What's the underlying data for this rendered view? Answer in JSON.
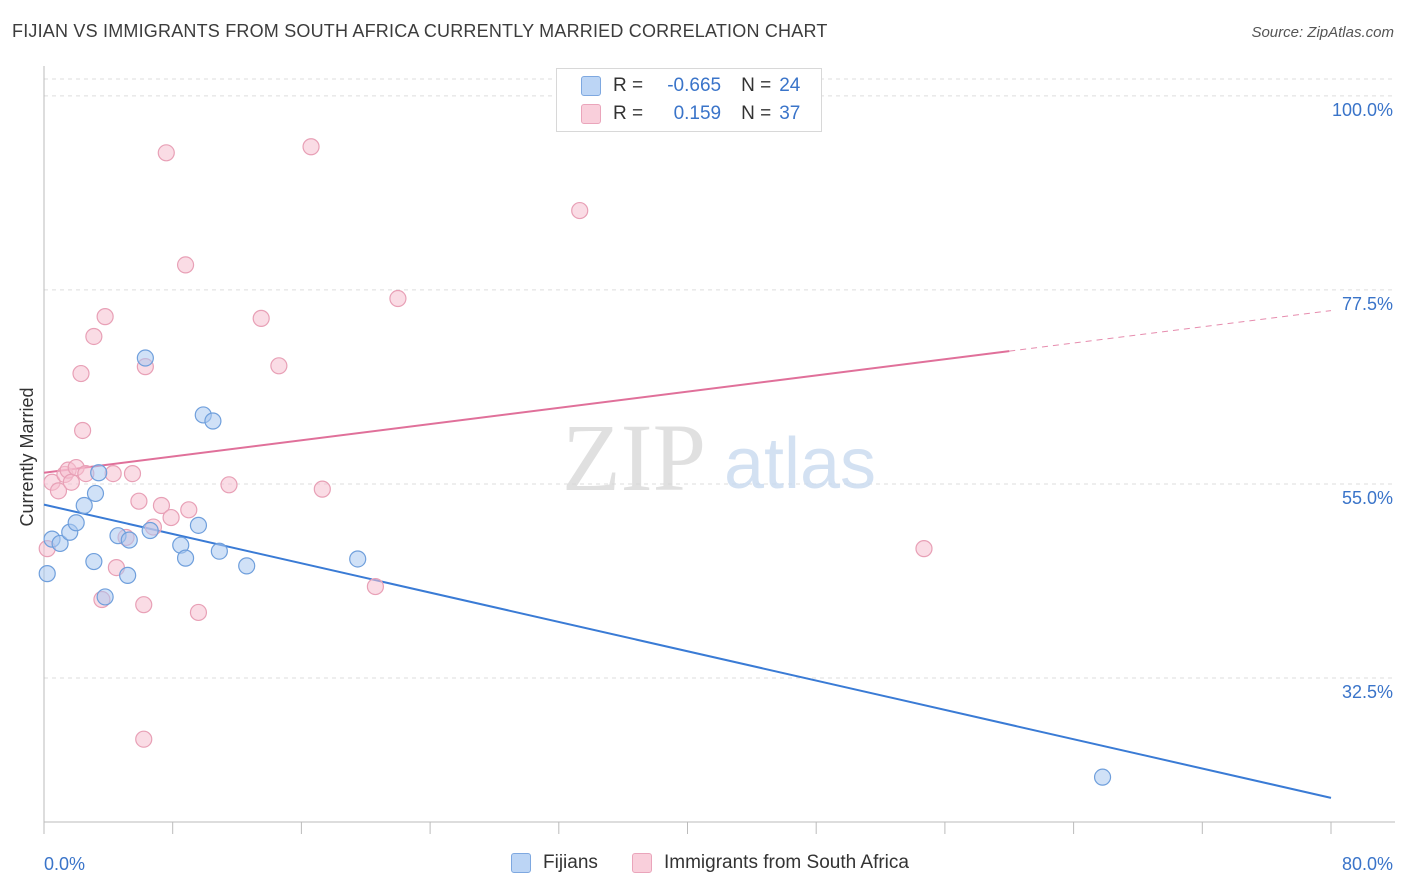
{
  "title": "FIJIAN VS IMMIGRANTS FROM SOUTH AFRICA CURRENTLY MARRIED CORRELATION CHART",
  "source": "Source: ZipAtlas.com",
  "colors": {
    "fijians_fill": "#a9c8f0",
    "fijians_stroke": "#6f9fdc",
    "fijians_line": "#3a7bd5",
    "sa_fill": "#f6c0d0",
    "sa_stroke": "#e8a0b6",
    "sa_line": "#e0709a",
    "axis_label": "#3a74c9",
    "grid": "#dddddd"
  },
  "legend": {
    "fijians": {
      "r_label": "R =",
      "r_value": "-0.665",
      "n_label": "N =",
      "n_value": "24"
    },
    "sa": {
      "r_label": "R =",
      "r_value": "0.159",
      "n_label": "N =",
      "n_value": "37"
    }
  },
  "chart_data": {
    "type": "scatter",
    "title": "FIJIAN VS IMMIGRANTS FROM SOUTH AFRICA CURRENTLY MARRIED CORRELATION CHART",
    "xlabel": "",
    "ylabel": "Currently Married",
    "xlim": [
      0,
      80
    ],
    "ylim": [
      15.8,
      103
    ],
    "x_tick_labels": [
      "0.0%",
      "80.0%"
    ],
    "y_ticks": [
      32.5,
      55.0,
      77.5,
      100.0
    ],
    "y_tick_labels": [
      "32.5%",
      "55.0%",
      "77.5%",
      "100.0%"
    ],
    "watermark": {
      "zip": "ZIP",
      "atlas": "atlas"
    },
    "series": [
      {
        "name": "Fijians",
        "points": [
          [
            0.2,
            44.6
          ],
          [
            0.5,
            48.6
          ],
          [
            1.0,
            48.1
          ],
          [
            1.6,
            49.4
          ],
          [
            2.0,
            50.5
          ],
          [
            2.5,
            52.5
          ],
          [
            3.2,
            53.9
          ],
          [
            3.4,
            56.3
          ],
          [
            3.1,
            46.0
          ],
          [
            3.8,
            41.9
          ],
          [
            4.6,
            49.0
          ],
          [
            5.3,
            48.5
          ],
          [
            5.2,
            44.4
          ],
          [
            6.3,
            69.6
          ],
          [
            6.6,
            49.6
          ],
          [
            8.5,
            47.9
          ],
          [
            8.8,
            46.4
          ],
          [
            9.6,
            50.2
          ],
          [
            9.9,
            63.0
          ],
          [
            10.5,
            62.3
          ],
          [
            10.9,
            47.2
          ],
          [
            12.6,
            45.5
          ],
          [
            19.5,
            46.3
          ],
          [
            65.8,
            21.0
          ]
        ],
        "trend": {
          "x1": 0,
          "y1": 52.6,
          "x2": 80,
          "y2": 18.6
        }
      },
      {
        "name": "Immigrants from South Africa",
        "points": [
          [
            0.2,
            47.5
          ],
          [
            0.5,
            55.2
          ],
          [
            0.9,
            54.2
          ],
          [
            1.3,
            56.1
          ],
          [
            1.5,
            56.6
          ],
          [
            1.7,
            55.2
          ],
          [
            2.0,
            56.9
          ],
          [
            2.3,
            67.8
          ],
          [
            2.4,
            61.2
          ],
          [
            2.6,
            56.2
          ],
          [
            3.1,
            72.1
          ],
          [
            3.8,
            74.4
          ],
          [
            3.6,
            41.6
          ],
          [
            4.3,
            56.2
          ],
          [
            4.5,
            45.3
          ],
          [
            5.1,
            48.8
          ],
          [
            5.5,
            56.2
          ],
          [
            5.9,
            53.0
          ],
          [
            6.2,
            25.4
          ],
          [
            6.2,
            41.0
          ],
          [
            6.3,
            68.6
          ],
          [
            6.8,
            50.0
          ],
          [
            7.3,
            52.5
          ],
          [
            7.6,
            93.4
          ],
          [
            7.9,
            51.1
          ],
          [
            8.8,
            80.4
          ],
          [
            9.0,
            52.0
          ],
          [
            9.6,
            40.1
          ],
          [
            11.5,
            54.9
          ],
          [
            13.5,
            74.2
          ],
          [
            14.6,
            68.7
          ],
          [
            16.6,
            94.1
          ],
          [
            17.3,
            54.4
          ],
          [
            20.6,
            43.1
          ],
          [
            22.0,
            76.5
          ],
          [
            33.3,
            86.7
          ],
          [
            54.7,
            47.5
          ]
        ],
        "trend": {
          "x1": 0,
          "y1": 56.3,
          "x2": 60,
          "y2": 70.4,
          "x_dash_end": 80,
          "y_dash_end": 75.1
        }
      }
    ]
  },
  "bottom_legend": {
    "fijians_label": "Fijians",
    "sa_label": "Immigrants from South Africa"
  }
}
